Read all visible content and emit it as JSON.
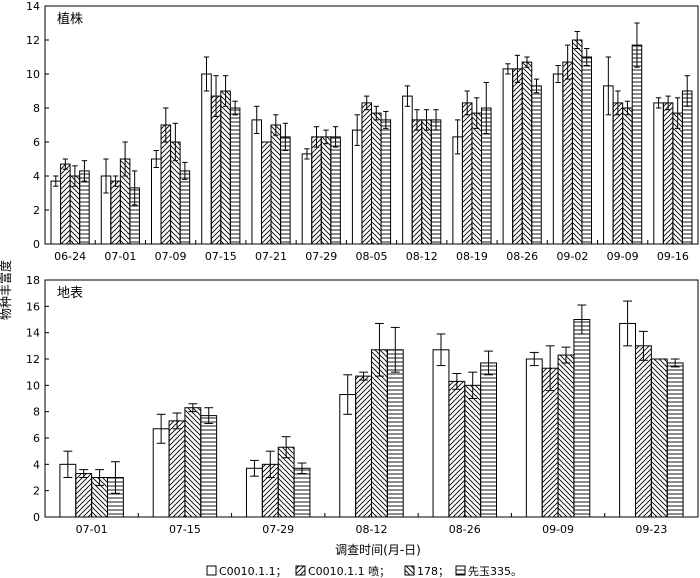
{
  "ylabel": "物种丰富度",
  "xlabel": "调查时间(月-日)",
  "legend": [
    {
      "label": "C0010.1.1；",
      "pattern": "blank"
    },
    {
      "label": "C0010.1.1 喷；",
      "pattern": "diag-fwd"
    },
    {
      "label": "178；",
      "pattern": "diag-back"
    },
    {
      "label": "先玉335。",
      "pattern": "horiz"
    }
  ],
  "chart_data": [
    {
      "type": "bar",
      "title": "植株",
      "ylim": [
        0,
        14
      ],
      "yticks": [
        0,
        2,
        4,
        6,
        8,
        10,
        12,
        14
      ],
      "categories": [
        "06-24",
        "07-01",
        "07-09",
        "07-15",
        "07-21",
        "07-29",
        "08-05",
        "08-12",
        "08-19",
        "08-26",
        "09-02",
        "09-09",
        "09-16"
      ],
      "series": [
        {
          "name": "C0010.1.1",
          "pattern": "blank",
          "values": [
            3.7,
            4.0,
            5.0,
            10.0,
            7.3,
            5.3,
            6.7,
            8.7,
            6.3,
            10.3,
            10.0,
            9.3,
            8.3
          ],
          "errors": [
            0.3,
            1.0,
            0.5,
            1.0,
            0.8,
            0.3,
            0.9,
            0.6,
            1.0,
            0.3,
            0.5,
            1.7,
            0.3
          ]
        },
        {
          "name": "C0010.1.1 喷",
          "pattern": "diag-fwd",
          "values": [
            4.7,
            3.7,
            7.0,
            8.7,
            6.0,
            6.3,
            8.3,
            7.3,
            8.3,
            10.3,
            10.7,
            8.3,
            8.3
          ]
        },
        {
          "name": "178",
          "pattern": "diag-back",
          "values": [
            4.0,
            5.0,
            6.0,
            9.0,
            7.0,
            6.3,
            7.7,
            7.3,
            7.7,
            10.7,
            12.0,
            8.0,
            7.7
          ]
        },
        {
          "name": "先玉335",
          "pattern": "horiz",
          "values": [
            4.3,
            3.3,
            4.3,
            8.0,
            6.3,
            6.3,
            7.3,
            7.3,
            8.0,
            9.3,
            11.0,
            11.7,
            9.0
          ]
        }
      ],
      "errors": [
        [
          0.3,
          1.0,
          0.5,
          1.0,
          0.8,
          0.3,
          0.9,
          0.6,
          1.0,
          0.3,
          0.5,
          1.7,
          0.3
        ],
        [
          0.3,
          0.3,
          1.0,
          1.2,
          0.0,
          0.6,
          0.4,
          0.6,
          0.7,
          0.8,
          1.0,
          0.7,
          0.4
        ],
        [
          0.6,
          1.0,
          1.1,
          0.9,
          0.6,
          0.4,
          0.4,
          0.6,
          0.9,
          0.3,
          0.5,
          0.4,
          0.9
        ],
        [
          0.6,
          1.0,
          0.5,
          0.4,
          0.8,
          0.6,
          0.5,
          0.6,
          1.5,
          0.4,
          0.5,
          1.3,
          0.9
        ]
      ]
    },
    {
      "type": "bar",
      "title": "地表",
      "ylim": [
        0,
        18
      ],
      "yticks": [
        0,
        2,
        4,
        6,
        8,
        10,
        12,
        14,
        16,
        18
      ],
      "categories": [
        "07-01",
        "07-15",
        "07-29",
        "08-12",
        "08-26",
        "09-09",
        "09-23"
      ],
      "series": [
        {
          "name": "C0010.1.1",
          "pattern": "blank",
          "values": [
            4.0,
            6.7,
            3.7,
            9.3,
            12.7,
            12.0,
            14.7
          ]
        },
        {
          "name": "C0010.1.1 喷",
          "pattern": "diag-fwd",
          "values": [
            3.3,
            7.3,
            4.0,
            10.7,
            10.3,
            11.3,
            13.0
          ]
        },
        {
          "name": "178",
          "pattern": "diag-back",
          "values": [
            3.0,
            8.3,
            5.3,
            12.7,
            10.0,
            12.3,
            12.0
          ]
        },
        {
          "name": "先玉335",
          "pattern": "horiz",
          "values": [
            3.0,
            7.7,
            3.7,
            12.7,
            11.7,
            15.0,
            11.7
          ]
        }
      ],
      "errors": [
        [
          1.0,
          1.1,
          0.6,
          1.5,
          1.2,
          0.5,
          1.7
        ],
        [
          0.3,
          0.6,
          1.0,
          0.3,
          0.6,
          1.7,
          1.1
        ],
        [
          0.6,
          0.3,
          0.8,
          2.0,
          1.0,
          0.6,
          0.0
        ],
        [
          1.2,
          0.6,
          0.4,
          1.7,
          0.9,
          1.1,
          0.3
        ]
      ]
    }
  ]
}
